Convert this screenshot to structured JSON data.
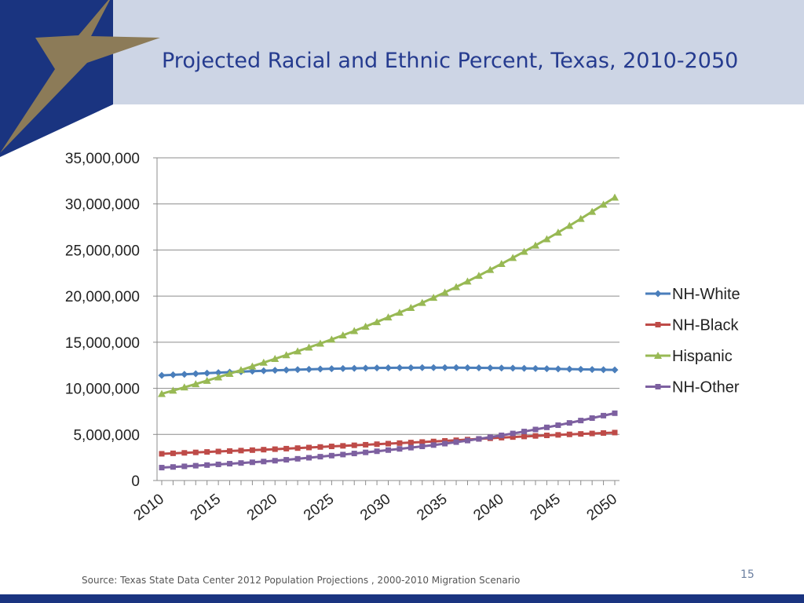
{
  "slide": {
    "title": "Projected Racial and Ethnic Percent, Texas, 2010-2050",
    "source": "Source: Texas State Data Center 2012 Population Projections , 2000-2010 Migration Scenario",
    "page_number": "15"
  },
  "colors": {
    "header_band": "#cdd5e5",
    "navy": "#1a3480",
    "star_gold": "#8c7b58",
    "title_text": "#253b8f"
  },
  "chart_data": {
    "type": "line",
    "title": "",
    "xlabel": "",
    "ylabel": "",
    "xlim": [
      2010,
      2050
    ],
    "ylim": [
      0,
      35000000
    ],
    "yticks": [
      0,
      5000000,
      10000000,
      15000000,
      20000000,
      25000000,
      30000000,
      35000000
    ],
    "ytick_labels": [
      "0",
      "5,000,000",
      "10,000,000",
      "15,000,000",
      "20,000,000",
      "25,000,000",
      "30,000,000",
      "35,000,000"
    ],
    "xtick_labels": [
      "2010",
      "2015",
      "2020",
      "2025",
      "2030",
      "2035",
      "2040",
      "2045",
      "2050"
    ],
    "grid": "horizontal",
    "legend": "right",
    "x": [
      2010,
      2015,
      2020,
      2025,
      2030,
      2035,
      2040,
      2045,
      2050
    ],
    "series": [
      {
        "name": "NH-White",
        "color": "#4a7ebb",
        "marker": "diamond",
        "values": [
          11400000,
          11700000,
          11950000,
          12120000,
          12220000,
          12240000,
          12200000,
          12100000,
          12000000
        ]
      },
      {
        "name": "NH-Black",
        "color": "#be4b48",
        "marker": "square",
        "values": [
          2900000,
          3150000,
          3400000,
          3700000,
          4000000,
          4300000,
          4650000,
          4950000,
          5200000
        ]
      },
      {
        "name": "Hispanic",
        "color": "#98b954",
        "marker": "triangle",
        "values": [
          9400000,
          11200000,
          13200000,
          15300000,
          17700000,
          20400000,
          23500000,
          26900000,
          30700000
        ]
      },
      {
        "name": "NH-Other",
        "color": "#7d60a0",
        "marker": "square",
        "values": [
          1400000,
          1750000,
          2150000,
          2700000,
          3300000,
          4000000,
          4900000,
          6000000,
          7300000
        ]
      }
    ]
  }
}
